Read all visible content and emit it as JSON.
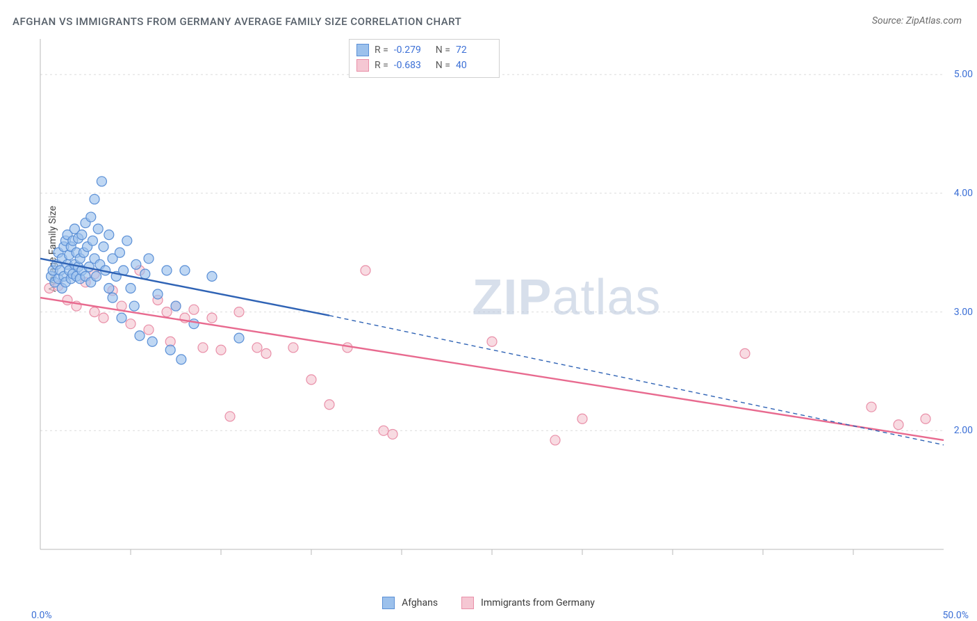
{
  "header": {
    "title": "AFGHAN VS IMMIGRANTS FROM GERMANY AVERAGE FAMILY SIZE CORRELATION CHART",
    "source": "Source: ZipAtlas.com"
  },
  "watermark": {
    "brand_a": "ZIP",
    "brand_b": "atlas"
  },
  "chart": {
    "type": "scatter",
    "background_color": "#ffffff",
    "grid_color": "#dcdcdc",
    "axis_color": "#b8b8b8",
    "tick_label_color": "#3b6fd6",
    "axis_label_color": "#444444",
    "y_axis_label": "Average Family Size",
    "xlim": [
      0,
      50
    ],
    "ylim": [
      1.0,
      5.3
    ],
    "x_ticks_minor": [
      5,
      10,
      15,
      20,
      25,
      30,
      35,
      40,
      45
    ],
    "x_tick_labels": {
      "min": "0.0%",
      "max": "50.0%"
    },
    "y_gridlines": [
      2.0,
      3.0,
      4.0,
      5.0
    ],
    "y_tick_labels": [
      "2.00",
      "3.00",
      "4.00",
      "5.00"
    ],
    "tick_fontsize": 14,
    "label_fontsize": 14,
    "title_fontsize": 15,
    "marker_radius": 7,
    "marker_stroke_width": 1.2,
    "line_width_solid": 2.4,
    "line_dash": "6,5",
    "series": {
      "afghans": {
        "label": "Afghans",
        "fill": "#9cc1ec",
        "stroke": "#5a8fd6",
        "line_color": "#2f63b5",
        "r_value": "-0.279",
        "n_value": "72",
        "trend_solid": {
          "x1": 0,
          "y1": 3.45,
          "x2": 16,
          "y2": 2.97
        },
        "trend_dash": {
          "x1": 16,
          "y1": 2.97,
          "x2": 50,
          "y2": 1.88
        },
        "points": [
          [
            0.6,
            3.3
          ],
          [
            0.7,
            3.35
          ],
          [
            0.8,
            3.25
          ],
          [
            0.9,
            3.4
          ],
          [
            1.0,
            3.28
          ],
          [
            1.0,
            3.5
          ],
          [
            1.1,
            3.35
          ],
          [
            1.2,
            3.45
          ],
          [
            1.2,
            3.2
          ],
          [
            1.3,
            3.55
          ],
          [
            1.3,
            3.3
          ],
          [
            1.4,
            3.6
          ],
          [
            1.4,
            3.25
          ],
          [
            1.5,
            3.4
          ],
          [
            1.5,
            3.65
          ],
          [
            1.6,
            3.35
          ],
          [
            1.6,
            3.48
          ],
          [
            1.7,
            3.28
          ],
          [
            1.7,
            3.55
          ],
          [
            1.8,
            3.32
          ],
          [
            1.8,
            3.6
          ],
          [
            1.9,
            3.4
          ],
          [
            1.9,
            3.7
          ],
          [
            2.0,
            3.3
          ],
          [
            2.0,
            3.5
          ],
          [
            2.1,
            3.38
          ],
          [
            2.1,
            3.62
          ],
          [
            2.2,
            3.45
          ],
          [
            2.2,
            3.28
          ],
          [
            2.3,
            3.65
          ],
          [
            2.3,
            3.35
          ],
          [
            2.4,
            3.5
          ],
          [
            2.5,
            3.3
          ],
          [
            2.5,
            3.75
          ],
          [
            2.6,
            3.55
          ],
          [
            2.7,
            3.38
          ],
          [
            2.8,
            3.8
          ],
          [
            2.8,
            3.25
          ],
          [
            2.9,
            3.6
          ],
          [
            3.0,
            3.45
          ],
          [
            3.0,
            3.95
          ],
          [
            3.1,
            3.3
          ],
          [
            3.2,
            3.7
          ],
          [
            3.3,
            3.4
          ],
          [
            3.4,
            4.1
          ],
          [
            3.5,
            3.55
          ],
          [
            3.6,
            3.35
          ],
          [
            3.8,
            3.2
          ],
          [
            3.8,
            3.65
          ],
          [
            4.0,
            3.12
          ],
          [
            4.0,
            3.45
          ],
          [
            4.2,
            3.3
          ],
          [
            4.4,
            3.5
          ],
          [
            4.5,
            2.95
          ],
          [
            4.6,
            3.35
          ],
          [
            4.8,
            3.6
          ],
          [
            5.0,
            3.2
          ],
          [
            5.2,
            3.05
          ],
          [
            5.3,
            3.4
          ],
          [
            5.5,
            2.8
          ],
          [
            5.8,
            3.32
          ],
          [
            6.0,
            3.45
          ],
          [
            6.2,
            2.75
          ],
          [
            6.5,
            3.15
          ],
          [
            7.0,
            3.35
          ],
          [
            7.2,
            2.68
          ],
          [
            7.5,
            3.05
          ],
          [
            7.8,
            2.6
          ],
          [
            8.0,
            3.35
          ],
          [
            8.5,
            2.9
          ],
          [
            9.5,
            3.3
          ],
          [
            11.0,
            2.78
          ]
        ]
      },
      "germany": {
        "label": "Immigrants from Germany",
        "fill": "#f5c7d3",
        "stroke": "#e98fa8",
        "line_color": "#e86a8f",
        "r_value": "-0.683",
        "n_value": "40",
        "trend_solid": {
          "x1": 0,
          "y1": 3.12,
          "x2": 50,
          "y2": 1.92
        },
        "trend_dash": null,
        "points": [
          [
            0.5,
            3.2
          ],
          [
            1.0,
            3.22
          ],
          [
            1.5,
            3.1
          ],
          [
            2.0,
            3.05
          ],
          [
            2.5,
            3.25
          ],
          [
            3.0,
            3.0
          ],
          [
            3.0,
            3.32
          ],
          [
            3.5,
            2.95
          ],
          [
            4.0,
            3.18
          ],
          [
            4.5,
            3.05
          ],
          [
            5.0,
            2.9
          ],
          [
            5.5,
            3.35
          ],
          [
            6.0,
            2.85
          ],
          [
            6.5,
            3.1
          ],
          [
            7.0,
            3.0
          ],
          [
            7.2,
            2.75
          ],
          [
            7.5,
            3.05
          ],
          [
            8.0,
            2.95
          ],
          [
            8.5,
            3.02
          ],
          [
            9.0,
            2.7
          ],
          [
            9.5,
            2.95
          ],
          [
            10.0,
            2.68
          ],
          [
            10.5,
            2.12
          ],
          [
            11.0,
            3.0
          ],
          [
            12.0,
            2.7
          ],
          [
            12.5,
            2.65
          ],
          [
            14.0,
            2.7
          ],
          [
            15.0,
            2.43
          ],
          [
            16.0,
            2.22
          ],
          [
            17.0,
            2.7
          ],
          [
            18.0,
            3.35
          ],
          [
            19.0,
            2.0
          ],
          [
            19.5,
            1.97
          ],
          [
            25.0,
            2.75
          ],
          [
            28.5,
            1.92
          ],
          [
            30.0,
            2.1
          ],
          [
            39.0,
            2.65
          ],
          [
            46.0,
            2.2
          ],
          [
            49.0,
            2.1
          ],
          [
            47.5,
            2.05
          ]
        ]
      }
    },
    "stats_box": {
      "r_label": "R =",
      "n_label": "N ="
    }
  },
  "legend": {
    "afghans": "Afghans",
    "germany": "Immigrants from Germany"
  }
}
